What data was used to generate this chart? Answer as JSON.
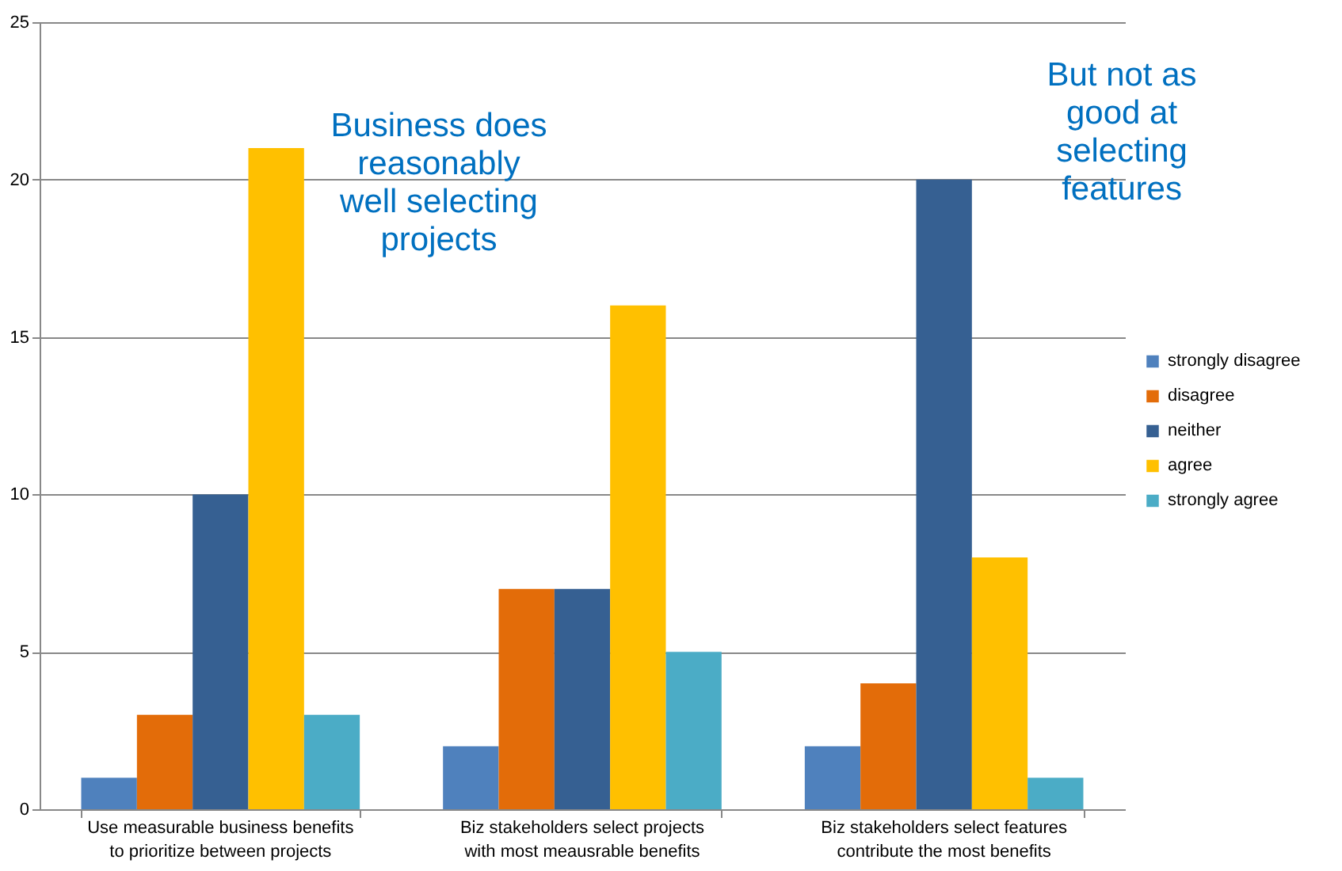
{
  "chart_data": {
    "type": "bar",
    "categories": [
      "Use measurable business benefits to prioritize between projects",
      "Biz stakeholders select projects with most meausrable benefits",
      "Biz stakeholders select features contribute the most benefits"
    ],
    "series": [
      {
        "name": "strongly disagree",
        "color": "#4f81bd",
        "values": [
          1,
          2,
          2
        ]
      },
      {
        "name": "disagree",
        "color": "#e36c09",
        "values": [
          3,
          7,
          4
        ]
      },
      {
        "name": "neither",
        "color": "#366092",
        "values": [
          10,
          7,
          20
        ]
      },
      {
        "name": "agree",
        "color": "#ffc000",
        "values": [
          21,
          16,
          8
        ]
      },
      {
        "name": "strongly agree",
        "color": "#4bacc6",
        "values": [
          3,
          5,
          1
        ]
      }
    ],
    "ylim": [
      0,
      25
    ],
    "yticks": [
      0,
      5,
      10,
      15,
      20,
      25
    ],
    "grid": "y",
    "legend": "right",
    "annotations": [
      "Business does reasonably well selecting projects",
      "But not as good at selecting features"
    ]
  }
}
